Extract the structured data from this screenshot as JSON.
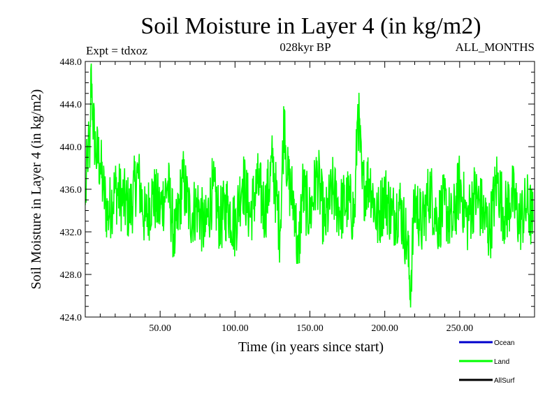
{
  "chart_data": {
    "type": "line",
    "title": "Soil Moisture in Layer 4 (in kg/m2)",
    "subtitle": "028kyr BP",
    "top_left_label": "Expt = tdxoz",
    "top_right_label": "ALL_MONTHS",
    "xlabel": "Time (in years since start)",
    "ylabel": "Soil Moisture in Layer 4 (in kg/m2)",
    "xlim": [
      0,
      300
    ],
    "ylim": [
      424.0,
      448.0
    ],
    "x_ticks": [
      50,
      100,
      150,
      200,
      250
    ],
    "x_tick_labels": [
      "50.00",
      "100.00",
      "150.00",
      "200.00",
      "250.00"
    ],
    "y_ticks": [
      424,
      428,
      432,
      436,
      440,
      444,
      448
    ],
    "y_tick_labels": [
      "424.0",
      "428.0",
      "432.0",
      "436.0",
      "440.0",
      "444.0",
      "448.0"
    ],
    "legend": {
      "position": "bottom-right",
      "entries": [
        {
          "name": "Ocean",
          "color": "#0000cc"
        },
        {
          "name": "Land",
          "color": "#00ff00"
        },
        {
          "name": "AllSurf",
          "color": "#000000"
        }
      ]
    },
    "series": [
      {
        "name": "Land",
        "color": "#00ff00",
        "x": [
          0,
          2,
          3,
          4,
          5,
          7,
          10,
          12,
          15,
          20,
          25,
          30,
          35,
          40,
          45,
          50,
          55,
          60,
          65,
          70,
          75,
          80,
          85,
          90,
          95,
          100,
          105,
          110,
          115,
          120,
          125,
          130,
          133,
          135,
          140,
          142,
          145,
          150,
          155,
          160,
          165,
          170,
          175,
          180,
          182,
          185,
          190,
          195,
          200,
          205,
          210,
          215,
          217,
          220,
          225,
          230,
          235,
          240,
          245,
          250,
          255,
          260,
          265,
          270,
          275,
          280,
          285,
          290,
          295,
          299
        ],
        "values": [
          434.5,
          440.5,
          438.0,
          447.8,
          443.0,
          439.5,
          438.5,
          436.0,
          433.5,
          436.0,
          435.0,
          434.0,
          437.5,
          433.0,
          435.5,
          434.0,
          436.5,
          431.0,
          437.0,
          433.5,
          434.5,
          432.0,
          436.0,
          433.0,
          434.5,
          432.5,
          437.0,
          433.5,
          436.5,
          434.0,
          438.5,
          432.0,
          443.5,
          437.0,
          434.5,
          429.0,
          436.0,
          433.5,
          437.5,
          432.5,
          436.0,
          434.0,
          435.0,
          433.5,
          444.0,
          436.0,
          437.0,
          433.0,
          435.5,
          433.5,
          434.5,
          431.0,
          426.5,
          435.0,
          432.5,
          436.0,
          433.0,
          434.5,
          432.5,
          436.5,
          433.0,
          435.5,
          434.0,
          432.0,
          437.0,
          433.5,
          435.5,
          433.0,
          434.5,
          433.0
        ]
      }
    ]
  }
}
